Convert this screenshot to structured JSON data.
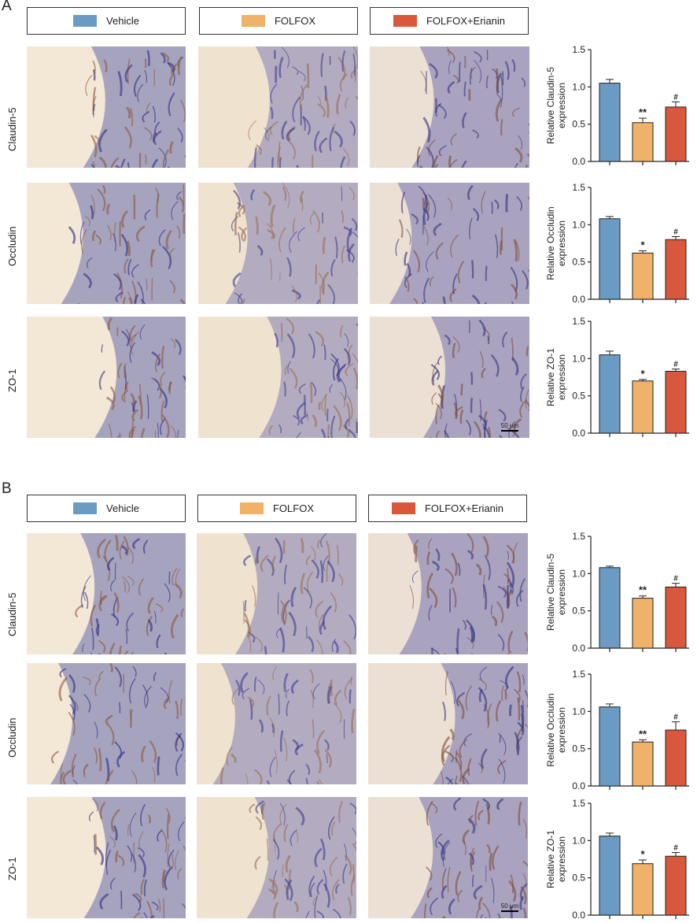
{
  "panels": [
    {
      "letter": "A",
      "legend": [
        {
          "label": "Vehicle",
          "color": "#6b9bc3"
        },
        {
          "label": "FOLFOX",
          "color": "#f0b168"
        },
        {
          "label": "FOLFOX+Erianin",
          "color": "#d9573b"
        }
      ],
      "rows": [
        {
          "label": "Claudin-5"
        },
        {
          "label": "Occludin"
        },
        {
          "label": "ZO-1"
        }
      ],
      "scale_bar": "50 μm"
    },
    {
      "letter": "B",
      "legend": [
        {
          "label": "Vehicle",
          "color": "#6b9bc3"
        },
        {
          "label": "FOLFOX",
          "color": "#f0b168"
        },
        {
          "label": "FOLFOX+Erianin",
          "color": "#d9573b"
        }
      ],
      "rows": [
        {
          "label": "Claudin-5"
        },
        {
          "label": "Occludin"
        },
        {
          "label": "ZO-1"
        }
      ],
      "scale_bar": "50 μm"
    }
  ],
  "chart_data": [
    {
      "type": "bar",
      "panel": "A",
      "ylabel": [
        "Relative Claudin-5",
        "expression"
      ],
      "ylim": [
        0,
        1.5
      ],
      "yticks": [
        "0.0",
        "0.5",
        "1.0",
        "1.5"
      ],
      "categories": [
        "Vehicle",
        "FOLFOX",
        "FOLFOX+Erianin"
      ],
      "values": [
        1.05,
        0.52,
        0.73
      ],
      "errors": [
        0.05,
        0.06,
        0.07
      ],
      "annotations": [
        "",
        "**",
        "#"
      ]
    },
    {
      "type": "bar",
      "panel": "A",
      "ylabel": [
        "Relative Occludin",
        "expression"
      ],
      "ylim": [
        0,
        1.5
      ],
      "yticks": [
        "0.0",
        "0.5",
        "1.0",
        "1.5"
      ],
      "categories": [
        "Vehicle",
        "FOLFOX",
        "FOLFOX+Erianin"
      ],
      "values": [
        1.08,
        0.62,
        0.8
      ],
      "errors": [
        0.03,
        0.03,
        0.04
      ],
      "annotations": [
        "",
        "*",
        "#"
      ]
    },
    {
      "type": "bar",
      "panel": "A",
      "ylabel": [
        "Relative ZO-1",
        "expression"
      ],
      "ylim": [
        0,
        1.5
      ],
      "yticks": [
        "0.0",
        "0.5",
        "1.0",
        "1.5"
      ],
      "categories": [
        "Vehicle",
        "FOLFOX",
        "FOLFOX+Erianin"
      ],
      "values": [
        1.05,
        0.7,
        0.83
      ],
      "errors": [
        0.05,
        0.02,
        0.03
      ],
      "annotations": [
        "",
        "*",
        "#"
      ]
    },
    {
      "type": "bar",
      "panel": "B",
      "ylabel": [
        "Relative Claudin-5",
        "expression"
      ],
      "ylim": [
        0,
        1.5
      ],
      "yticks": [
        "0.0",
        "0.5",
        "1.0",
        "1.5"
      ],
      "categories": [
        "Vehicle",
        "FOLFOX",
        "FOLFOX+Erianin"
      ],
      "values": [
        1.08,
        0.67,
        0.82
      ],
      "errors": [
        0.02,
        0.03,
        0.05
      ],
      "annotations": [
        "",
        "**",
        "#"
      ]
    },
    {
      "type": "bar",
      "panel": "B",
      "ylabel": [
        "Relative Occludin",
        "expression"
      ],
      "ylim": [
        0,
        1.5
      ],
      "yticks": [
        "0.0",
        "0.5",
        "1.0",
        "1.5"
      ],
      "categories": [
        "Vehicle",
        "FOLFOX",
        "FOLFOX+Erianin"
      ],
      "values": [
        1.06,
        0.59,
        0.75
      ],
      "errors": [
        0.04,
        0.03,
        0.11
      ],
      "annotations": [
        "",
        "**",
        "#"
      ]
    },
    {
      "type": "bar",
      "panel": "B",
      "ylabel": [
        "Relative ZO-1",
        "expression"
      ],
      "ylim": [
        0,
        1.5
      ],
      "yticks": [
        "0.0",
        "0.5",
        "1.0",
        "1.5"
      ],
      "categories": [
        "Vehicle",
        "FOLFOX",
        "FOLFOX+Erianin"
      ],
      "values": [
        1.06,
        0.69,
        0.79
      ],
      "errors": [
        0.04,
        0.05,
        0.05
      ],
      "annotations": [
        "",
        "*",
        "#"
      ]
    }
  ]
}
